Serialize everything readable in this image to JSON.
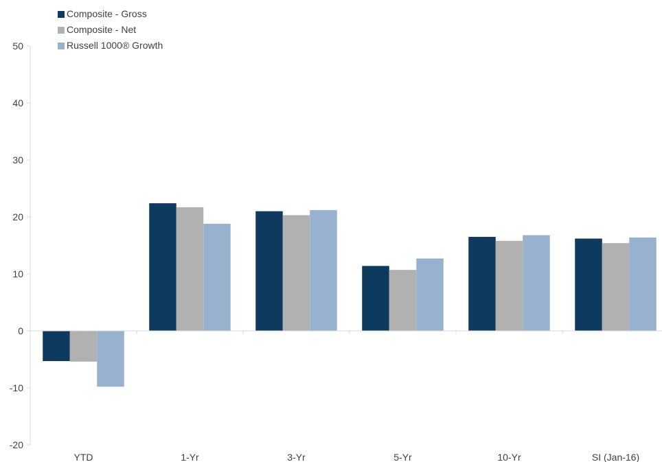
{
  "chart_data": {
    "type": "bar",
    "categories": [
      "YTD",
      "1-Yr",
      "3-Yr",
      "5-Yr",
      "10-Yr",
      "SI (Jan-16)"
    ],
    "series": [
      {
        "name": "Composite - Gross",
        "color": "#0e3a60",
        "values": [
          -5.3,
          22.4,
          21.0,
          11.4,
          16.5,
          16.2
        ]
      },
      {
        "name": "Composite - Net",
        "color": "#b1b1b1",
        "values": [
          -5.4,
          21.7,
          20.3,
          10.7,
          15.8,
          15.4
        ]
      },
      {
        "name": "Russell 1000® Growth",
        "color": "#98b1cf",
        "values": [
          -9.8,
          18.8,
          21.2,
          12.7,
          16.8,
          16.4
        ]
      }
    ],
    "ylim": [
      -20,
      50
    ],
    "yticks": [
      -20,
      -10,
      0,
      10,
      20,
      30,
      40,
      50
    ],
    "legend_position": "top-left",
    "grid": false
  }
}
